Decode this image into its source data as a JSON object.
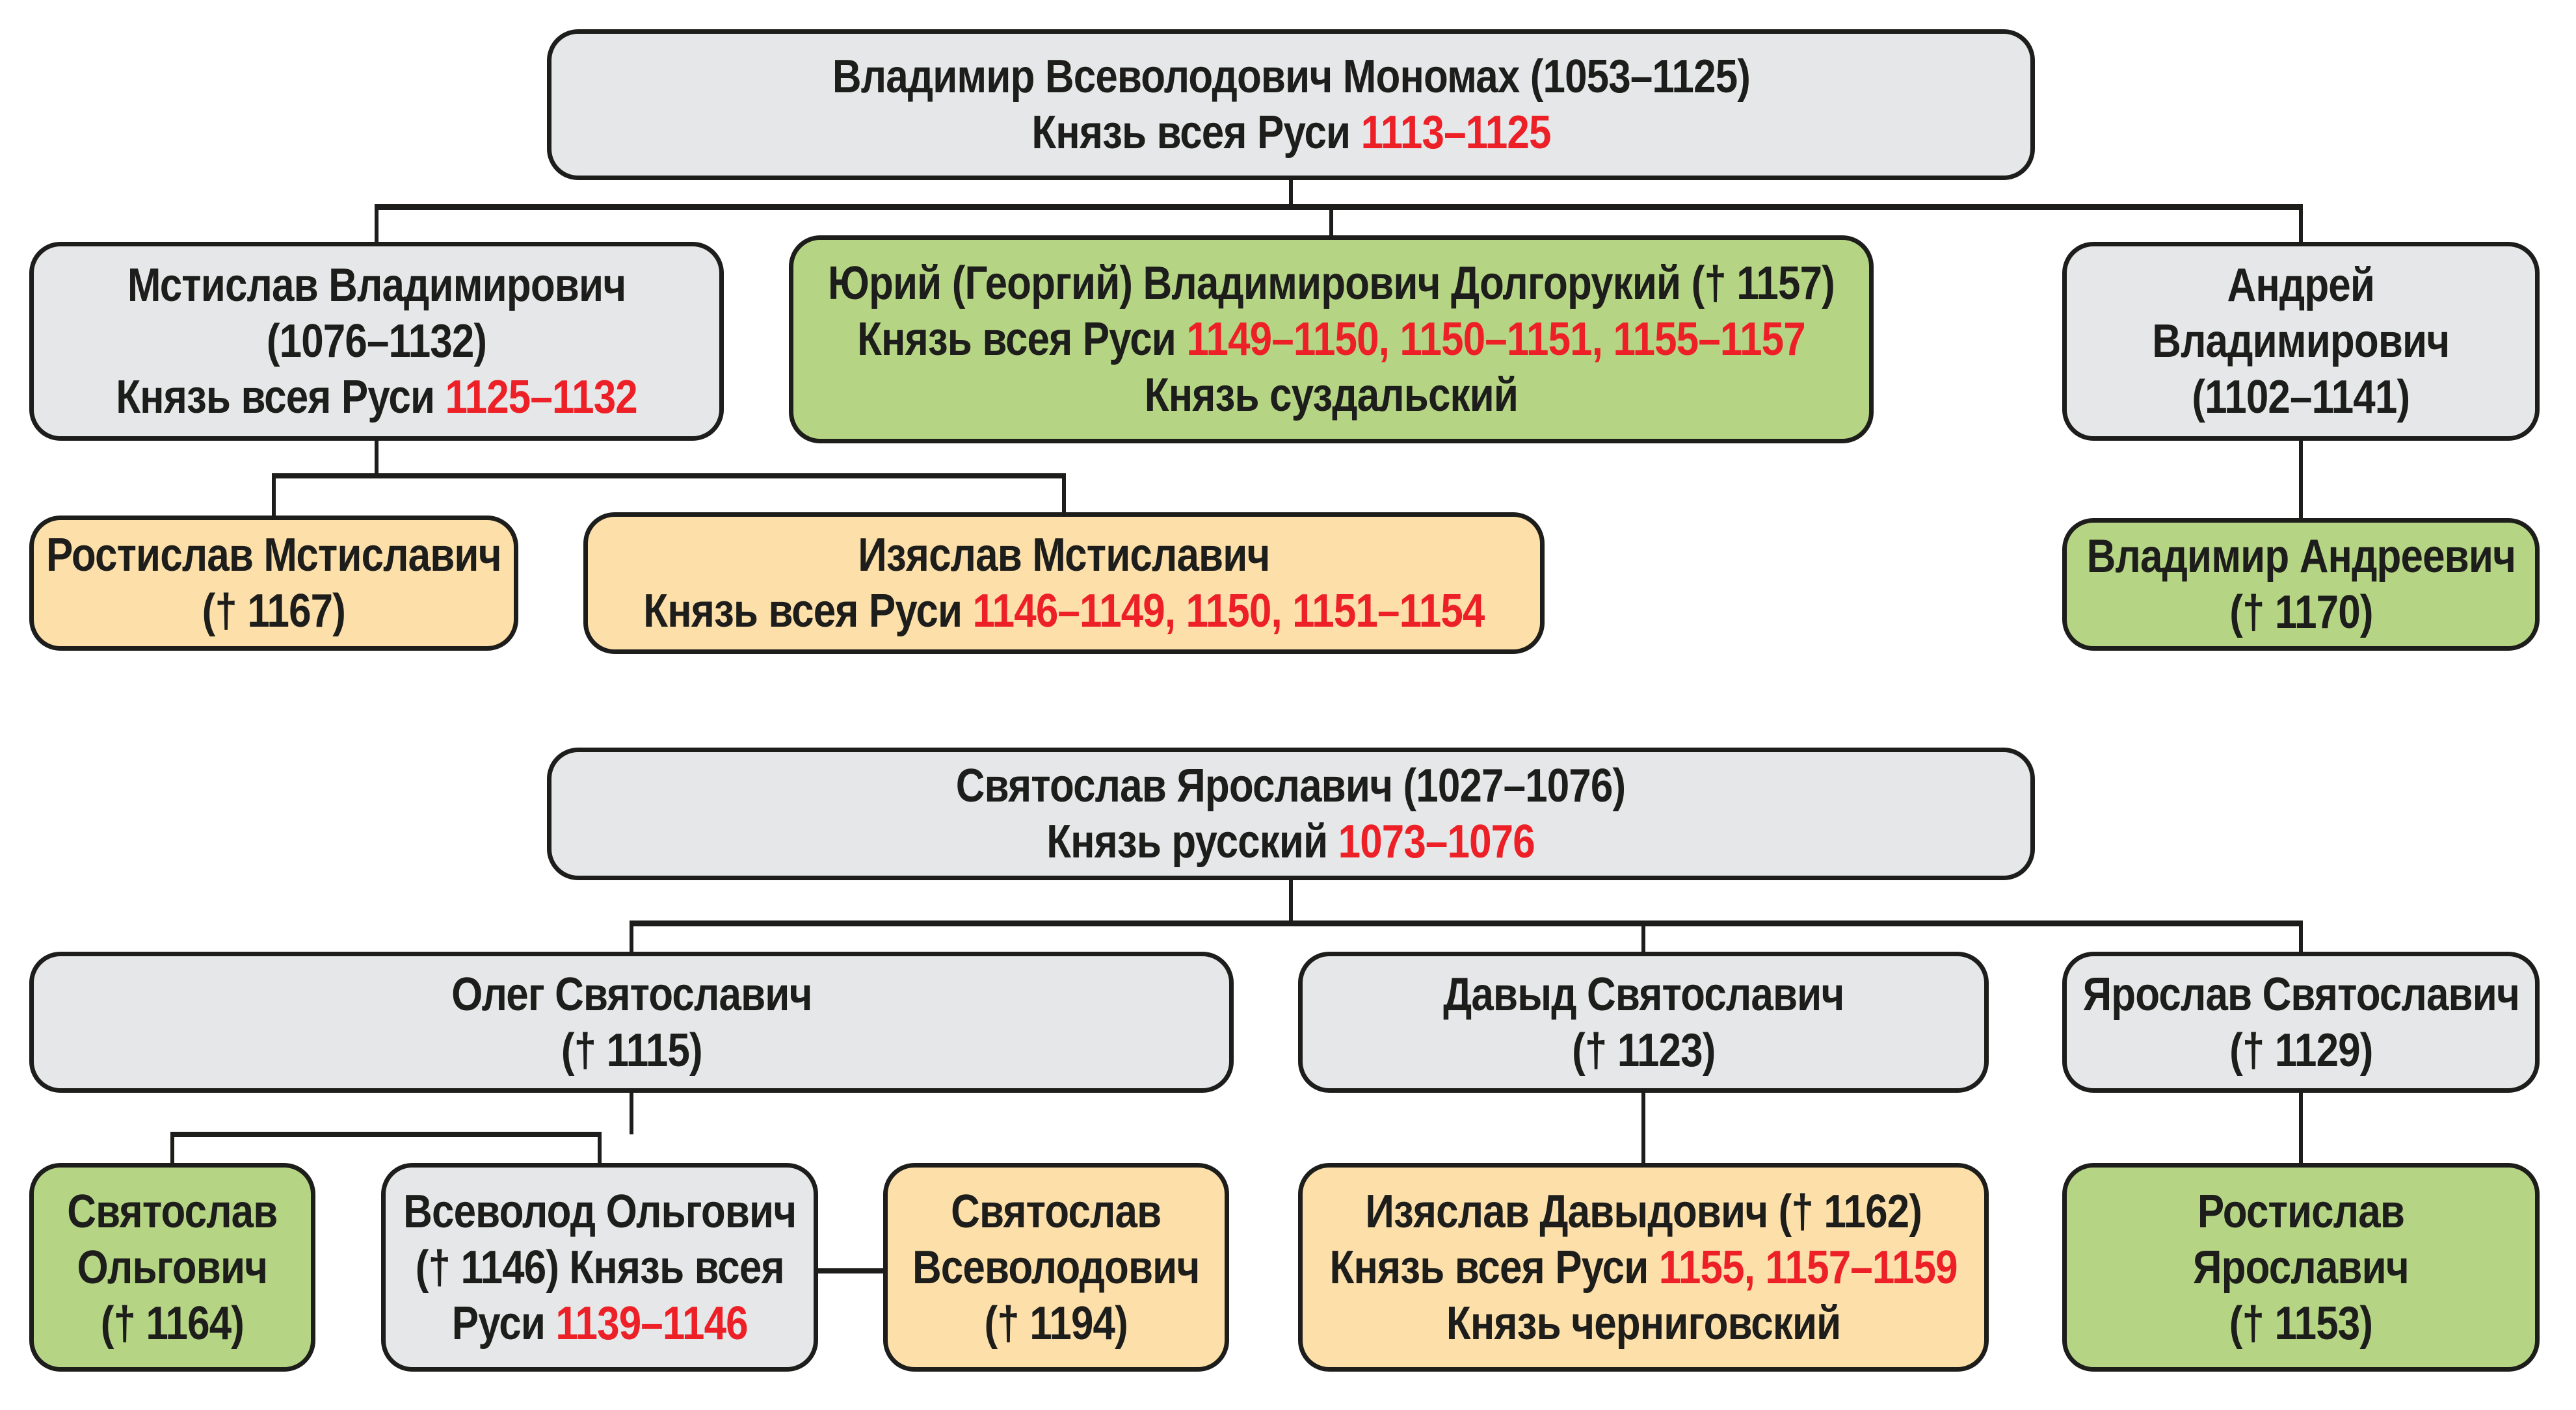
{
  "colors": {
    "background": "#ffffff",
    "gray": "#e6e7e8",
    "green": "#b5d584",
    "tan": "#fcdfa9",
    "red": "#ec2026",
    "line": "#1d1d1b",
    "text": "#1d1d1b"
  },
  "boxes": {
    "monomakh": {
      "fill": "gray",
      "lines": [
        [
          {
            "t": "Владимир Всеволодович Мономах (1053–1125)"
          }
        ],
        [
          {
            "t": "Князь всея Руси "
          },
          {
            "t": "1113–1125",
            "red": true
          }
        ]
      ]
    },
    "mstislav": {
      "fill": "gray",
      "lines": [
        [
          {
            "t": "Мстислав Владимирович"
          }
        ],
        [
          {
            "t": "(1076–1132)"
          }
        ],
        [
          {
            "t": "Князь всея Руси "
          },
          {
            "t": "1125–1132",
            "red": true
          }
        ]
      ]
    },
    "yuri": {
      "fill": "green",
      "lines": [
        [
          {
            "t": "Юрий (Георгий) Владимирович Долгорукий († 1157)"
          }
        ],
        [
          {
            "t": "Князь всея Руси "
          },
          {
            "t": "1149–1150, 1150–1151, 1155–1157",
            "red": true
          }
        ],
        [
          {
            "t": "Князь суздальский"
          }
        ]
      ]
    },
    "andrey": {
      "fill": "gray",
      "lines": [
        [
          {
            "t": "Андрей"
          }
        ],
        [
          {
            "t": "Владимирович"
          }
        ],
        [
          {
            "t": "(1102–1141)"
          }
        ]
      ]
    },
    "rostislav_m": {
      "fill": "tan",
      "lines": [
        [
          {
            "t": "Ростислав Мстиславич"
          }
        ],
        [
          {
            "t": "(† 1167)"
          }
        ]
      ]
    },
    "izyaslav_m": {
      "fill": "tan",
      "lines": [
        [
          {
            "t": "Изяслав Мстиславич"
          }
        ],
        [
          {
            "t": "Князь всея Руси "
          },
          {
            "t": "1146–1149, 1150, 1151–1154",
            "red": true
          }
        ]
      ]
    },
    "vladimir_a": {
      "fill": "green",
      "lines": [
        [
          {
            "t": "Владимир Андреевич"
          }
        ],
        [
          {
            "t": "(† 1170)"
          }
        ]
      ]
    },
    "svyatoslav_y": {
      "fill": "gray",
      "lines": [
        [
          {
            "t": "Святослав Ярославич (1027–1076)"
          }
        ],
        [
          {
            "t": "Князь русский "
          },
          {
            "t": "1073–1076",
            "red": true
          }
        ]
      ]
    },
    "oleg": {
      "fill": "gray",
      "lines": [
        [
          {
            "t": "Олег Святославич"
          }
        ],
        [
          {
            "t": "(† 1115)"
          }
        ]
      ]
    },
    "davyd": {
      "fill": "gray",
      "lines": [
        [
          {
            "t": "Давыд Святославич"
          }
        ],
        [
          {
            "t": "(† 1123)"
          }
        ]
      ]
    },
    "yaroslav": {
      "fill": "gray",
      "lines": [
        [
          {
            "t": "Ярослав Святославич"
          }
        ],
        [
          {
            "t": "(† 1129)"
          }
        ]
      ]
    },
    "svyatoslav_o": {
      "fill": "green",
      "lines": [
        [
          {
            "t": "Святослав"
          }
        ],
        [
          {
            "t": "Ольгович"
          }
        ],
        [
          {
            "t": "(† 1164)"
          }
        ]
      ]
    },
    "vsevolod_o": {
      "fill": "gray",
      "lines": [
        [
          {
            "t": "Всеволод Ольгович"
          }
        ],
        [
          {
            "t": "(† 1146) Князь всея"
          }
        ],
        [
          {
            "t": "Руси "
          },
          {
            "t": "1139–1146",
            "red": true
          }
        ]
      ]
    },
    "svyatoslav_v": {
      "fill": "tan",
      "lines": [
        [
          {
            "t": "Святослав"
          }
        ],
        [
          {
            "t": "Всеволодович"
          }
        ],
        [
          {
            "t": "(† 1194)"
          }
        ]
      ]
    },
    "izyaslav_d": {
      "fill": "tan",
      "lines": [
        [
          {
            "t": "Изяслав Давыдович († 1162)"
          }
        ],
        [
          {
            "t": "Князь всея Руси "
          },
          {
            "t": "1155, 1157–1159",
            "red": true
          }
        ],
        [
          {
            "t": "Князь черниговский"
          }
        ]
      ]
    },
    "rostislav_y": {
      "fill": "green",
      "lines": [
        [
          {
            "t": "Ростислав"
          }
        ],
        [
          {
            "t": "Ярославич"
          }
        ],
        [
          {
            "t": "(† 1153)"
          }
        ]
      ]
    }
  }
}
